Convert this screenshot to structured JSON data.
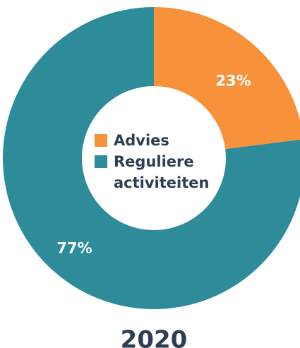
{
  "chart_data": {
    "type": "donut",
    "title": "2020",
    "categories": [
      "Advies",
      "Reguliere activiteiten"
    ],
    "values": [
      23,
      77
    ],
    "value_labels": [
      "23%",
      "77%"
    ],
    "colors": [
      "#f7923a",
      "#2e8b9a"
    ]
  }
}
